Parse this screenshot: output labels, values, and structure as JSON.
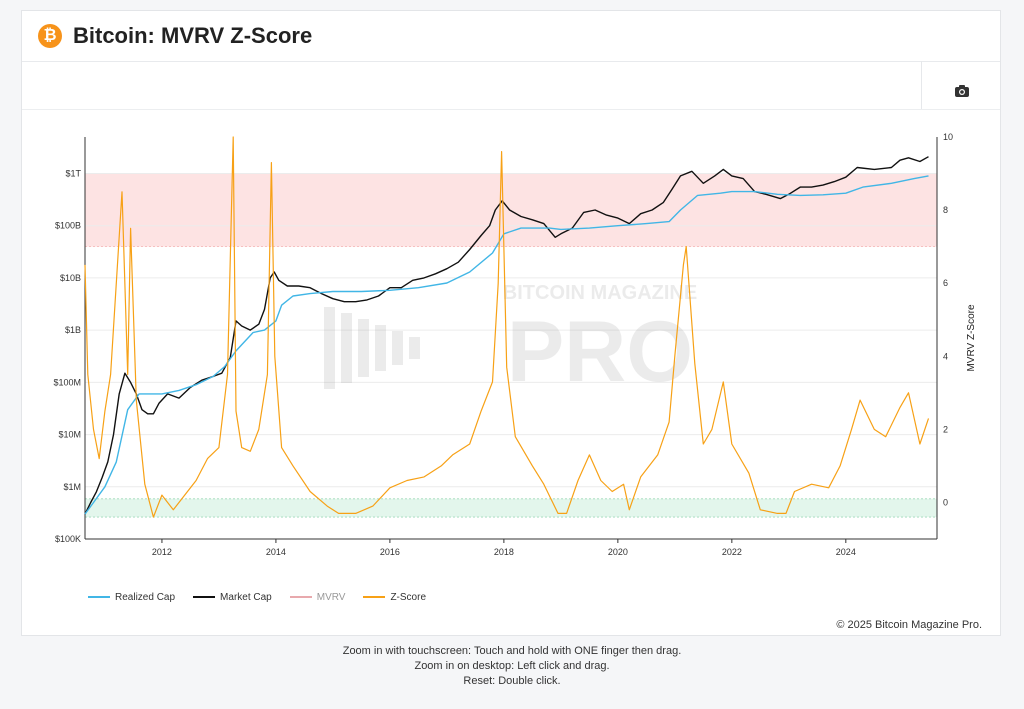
{
  "header": {
    "logo_glyph": "₿",
    "title": "Bitcoin: MVRV Z-Score"
  },
  "toolbar": {
    "camera_icon": "camera-icon"
  },
  "watermark": {
    "top": "BITCOIN MAGAZINE",
    "bottom": "PRO"
  },
  "legend": [
    {
      "name": "Realized Cap",
      "color": "#41b6e6"
    },
    {
      "name": "Market Cap",
      "color": "#111111"
    },
    {
      "name": "MVRV",
      "color": "#e8a9ad"
    },
    {
      "name": "Z-Score",
      "color": "#f7a116"
    }
  ],
  "copyright": "© 2025 Bitcoin Magazine Pro.",
  "hints": [
    "Zoom in with touchscreen: Touch and hold with ONE finger then drag.",
    "Zoom in on desktop: Left click and drag.",
    "Reset: Double click."
  ],
  "chart_data": {
    "type": "line",
    "x_range": [
      2010.65,
      2025.6
    ],
    "x_ticks": [
      "2012",
      "2014",
      "2016",
      "2018",
      "2020",
      "2022",
      "2024"
    ],
    "y_left": {
      "scale": "log",
      "range": [
        100000,
        5000000000000
      ],
      "ticks": [
        "$100K",
        "$1M",
        "$10M",
        "$100M",
        "$1B",
        "$10B",
        "$100B",
        "$1T"
      ]
    },
    "y_right": {
      "label": "MVRV Z-Score",
      "range": [
        -1,
        10
      ],
      "ticks": [
        "0",
        "2",
        "4",
        "6",
        "8",
        "10"
      ]
    },
    "bands": [
      {
        "name": "overvalued",
        "axis": "right",
        "from": 7,
        "to": 9,
        "color": "#fde3e3"
      },
      {
        "name": "undervalued",
        "axis": "right",
        "from": -0.4,
        "to": 0.1,
        "color": "#e3f6ec"
      }
    ],
    "series": [
      {
        "name": "Market Cap",
        "axis": "left",
        "color": "#111111",
        "x": [
          2010.65,
          2010.75,
          2010.85,
          2010.95,
          2011.05,
          2011.15,
          2011.25,
          2011.35,
          2011.45,
          2011.55,
          2011.65,
          2011.75,
          2011.85,
          2011.95,
          2012.1,
          2012.3,
          2012.5,
          2012.7,
          2012.9,
          2013.05,
          2013.2,
          2013.3,
          2013.4,
          2013.55,
          2013.7,
          2013.8,
          2013.9,
          2013.97,
          2014.05,
          2014.2,
          2014.4,
          2014.6,
          2014.8,
          2015.0,
          2015.2,
          2015.4,
          2015.6,
          2015.8,
          2016.0,
          2016.2,
          2016.4,
          2016.6,
          2016.8,
          2017.0,
          2017.2,
          2017.4,
          2017.6,
          2017.75,
          2017.85,
          2017.97,
          2018.1,
          2018.3,
          2018.5,
          2018.7,
          2018.9,
          2019.0,
          2019.2,
          2019.4,
          2019.6,
          2019.8,
          2020.0,
          2020.2,
          2020.4,
          2020.6,
          2020.8,
          2020.95,
          2021.1,
          2021.3,
          2021.5,
          2021.7,
          2021.85,
          2022.0,
          2022.2,
          2022.4,
          2022.6,
          2022.85,
          2023.0,
          2023.2,
          2023.4,
          2023.6,
          2023.8,
          2024.0,
          2024.2,
          2024.5,
          2024.8,
          2024.95,
          2025.1,
          2025.3,
          2025.45
        ],
        "y": [
          300000,
          500000,
          800000,
          1500000,
          3000000,
          10000000,
          60000000,
          150000000,
          100000000,
          60000000,
          30000000,
          25000000,
          25000000,
          40000000,
          60000000,
          50000000,
          80000000,
          110000000,
          130000000,
          150000000,
          300000000,
          1500000000,
          1200000000,
          1000000000,
          1300000000,
          2500000000,
          10000000000,
          13000000000,
          9000000000,
          7000000000,
          7000000000,
          6500000000,
          5000000000,
          4000000000,
          3500000000,
          3500000000,
          3800000000,
          4500000000,
          6500000000,
          6500000000,
          9000000000,
          10000000000,
          12000000000,
          15000000000,
          20000000000,
          35000000000,
          65000000000,
          100000000000,
          200000000000,
          300000000000,
          200000000000,
          150000000000,
          130000000000,
          110000000000,
          60000000000,
          70000000000,
          90000000000,
          180000000000,
          200000000000,
          160000000000,
          140000000000,
          110000000000,
          170000000000,
          200000000000,
          280000000000,
          500000000000,
          900000000000,
          1100000000000,
          650000000000,
          900000000000,
          1200000000000,
          900000000000,
          800000000000,
          450000000000,
          400000000000,
          330000000000,
          400000000000,
          550000000000,
          550000000000,
          600000000000,
          700000000000,
          850000000000,
          1300000000000,
          1200000000000,
          1300000000000,
          1800000000000,
          2000000000000,
          1700000000000,
          2100000000000
        ]
      },
      {
        "name": "Realized Cap",
        "axis": "left",
        "color": "#41b6e6",
        "x": [
          2010.65,
          2010.8,
          2011.0,
          2011.2,
          2011.4,
          2011.6,
          2011.8,
          2012.0,
          2012.3,
          2012.6,
          2012.9,
          2013.1,
          2013.3,
          2013.6,
          2013.8,
          2014.0,
          2014.1,
          2014.3,
          2014.6,
          2015.0,
          2015.5,
          2016.0,
          2016.5,
          2017.0,
          2017.4,
          2017.8,
          2018.0,
          2018.3,
          2018.8,
          2019.0,
          2019.5,
          2020.0,
          2020.5,
          2020.9,
          2021.1,
          2021.4,
          2021.8,
          2022.0,
          2022.4,
          2022.8,
          2023.2,
          2023.6,
          2024.0,
          2024.3,
          2024.8,
          2025.2,
          2025.45
        ],
        "y": [
          300000,
          500000,
          1000000,
          3000000,
          30000000,
          60000000,
          60000000,
          60000000,
          70000000,
          90000000,
          130000000,
          200000000,
          400000000,
          900000000,
          1000000000,
          1500000000,
          3000000000,
          4500000000,
          5000000000,
          5500000000,
          5500000000,
          5800000000,
          6500000000,
          8000000000,
          13000000000,
          30000000000,
          70000000000,
          90000000000,
          90000000000,
          85000000000,
          90000000000,
          100000000000,
          110000000000,
          120000000000,
          200000000000,
          380000000000,
          420000000000,
          450000000000,
          450000000000,
          400000000000,
          380000000000,
          390000000000,
          420000000000,
          550000000000,
          650000000000,
          800000000000,
          900000000000
        ]
      },
      {
        "name": "Z-Score",
        "axis": "right",
        "color": "#f7a116",
        "x": [
          2010.65,
          2010.7,
          2010.8,
          2010.9,
          2011.0,
          2011.1,
          2011.3,
          2011.4,
          2011.45,
          2011.55,
          2011.7,
          2011.85,
          2012.0,
          2012.2,
          2012.4,
          2012.6,
          2012.8,
          2013.0,
          2013.15,
          2013.25,
          2013.3,
          2013.4,
          2013.55,
          2013.7,
          2013.85,
          2013.92,
          2013.98,
          2014.1,
          2014.3,
          2014.6,
          2014.9,
          2015.1,
          2015.4,
          2015.7,
          2016.0,
          2016.3,
          2016.6,
          2016.9,
          2017.1,
          2017.4,
          2017.6,
          2017.8,
          2017.9,
          2017.96,
          2018.05,
          2018.2,
          2018.5,
          2018.7,
          2018.95,
          2019.1,
          2019.3,
          2019.5,
          2019.7,
          2019.9,
          2020.1,
          2020.2,
          2020.4,
          2020.7,
          2020.9,
          2021.0,
          2021.15,
          2021.2,
          2021.35,
          2021.5,
          2021.65,
          2021.85,
          2022.0,
          2022.3,
          2022.5,
          2022.8,
          2022.95,
          2023.1,
          2023.4,
          2023.7,
          2023.9,
          2024.1,
          2024.25,
          2024.5,
          2024.7,
          2024.95,
          2025.1,
          2025.3,
          2025.45
        ],
        "y": [
          6.5,
          3.5,
          2.0,
          1.2,
          2.5,
          3.5,
          8.5,
          3.5,
          7.5,
          2.8,
          0.5,
          -0.4,
          0.2,
          -0.2,
          0.2,
          0.6,
          1.2,
          1.5,
          3.5,
          10.0,
          2.5,
          1.5,
          1.4,
          2.0,
          3.5,
          9.3,
          4.0,
          1.5,
          1.0,
          0.3,
          -0.1,
          -0.3,
          -0.3,
          -0.1,
          0.4,
          0.6,
          0.7,
          1.0,
          1.3,
          1.6,
          2.5,
          3.3,
          6.0,
          9.6,
          3.7,
          1.8,
          1.0,
          0.5,
          -0.3,
          -0.3,
          0.6,
          1.3,
          0.6,
          0.3,
          0.5,
          -0.2,
          0.7,
          1.3,
          2.2,
          4.0,
          6.5,
          7.0,
          3.8,
          1.6,
          2.0,
          3.3,
          1.6,
          0.8,
          -0.2,
          -0.3,
          -0.3,
          0.3,
          0.5,
          0.4,
          1.0,
          2.0,
          2.8,
          2.0,
          1.8,
          2.6,
          3.0,
          1.6,
          2.3
        ]
      }
    ]
  }
}
